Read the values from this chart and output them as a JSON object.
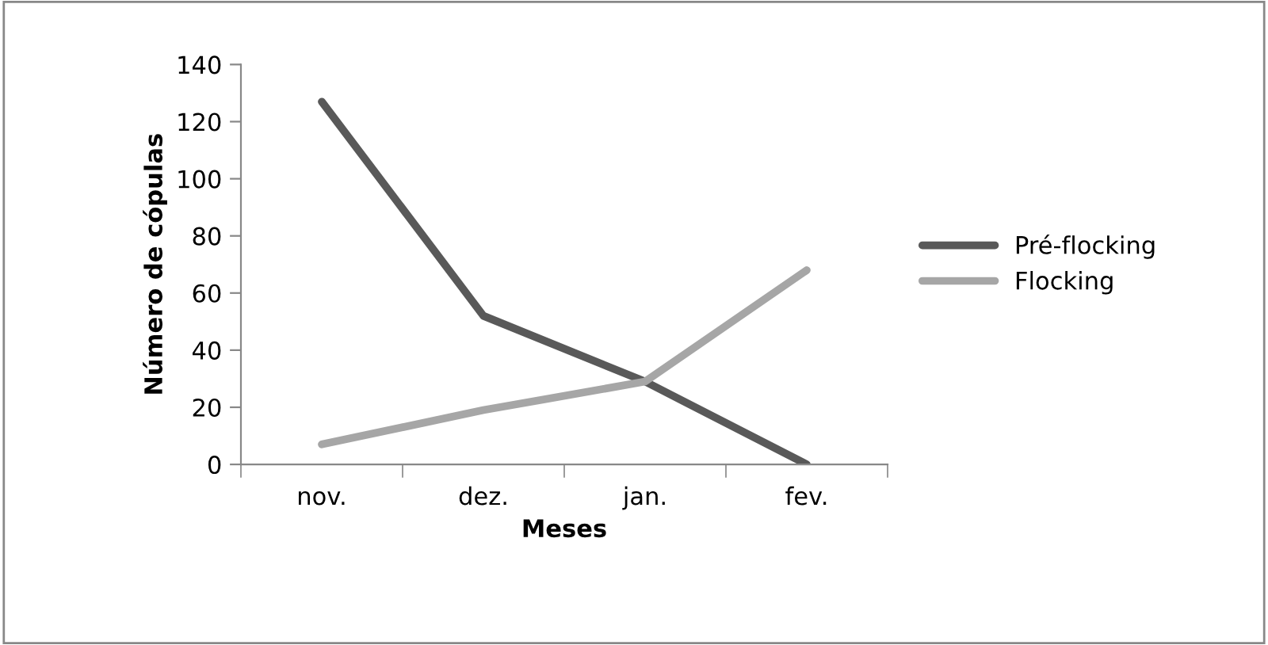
{
  "chart_data": {
    "type": "line",
    "xlabel": "Meses",
    "ylabel": "Número de cópulas",
    "categories": [
      "nov.",
      "dez.",
      "jan.",
      "fev."
    ],
    "series": [
      {
        "name": "Pré-flocking",
        "color": "#595959",
        "values": [
          127,
          52,
          29,
          0
        ]
      },
      {
        "name": "Flocking",
        "color": "#a6a6a6",
        "values": [
          7,
          19,
          29,
          68
        ]
      }
    ],
    "ylim": [
      0,
      140
    ],
    "yticks": [
      0,
      20,
      40,
      60,
      80,
      100,
      120,
      140
    ],
    "grid": false,
    "legend": "right",
    "marker": "none",
    "line_style": "solid"
  }
}
